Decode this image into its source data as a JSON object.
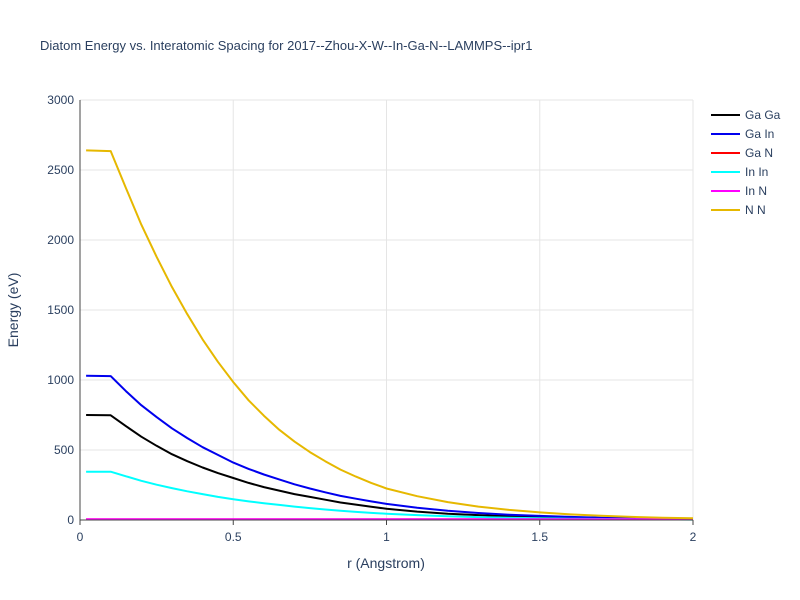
{
  "chart_data": {
    "type": "line",
    "title": "Diatom Energy vs. Interatomic Spacing for 2017--Zhou-X-W--In-Ga-N--LAMMPS--ipr1",
    "xlabel": "r (Angstrom)",
    "ylabel": "Energy (eV)",
    "xlim": [
      0,
      2
    ],
    "ylim": [
      0,
      3000
    ],
    "xticks": [
      0,
      0.5,
      1,
      1.5,
      2
    ],
    "xtick_labels": [
      "0",
      "0.5",
      "1",
      "1.5",
      "2"
    ],
    "yticks": [
      0,
      500,
      1000,
      1500,
      2000,
      2500,
      3000
    ],
    "ytick_labels": [
      "0",
      "500",
      "1000",
      "1500",
      "2000",
      "2500",
      "3000"
    ],
    "grid": true,
    "legend_position": "top-right",
    "x": [
      0.02,
      0.1,
      0.15,
      0.2,
      0.25,
      0.3,
      0.35,
      0.4,
      0.45,
      0.5,
      0.55,
      0.6,
      0.65,
      0.7,
      0.75,
      0.8,
      0.85,
      0.9,
      0.95,
      1.0,
      1.1,
      1.2,
      1.3,
      1.4,
      1.5,
      1.6,
      1.7,
      1.8,
      1.9,
      2.0
    ],
    "series": [
      {
        "name": "Ga Ga",
        "color": "#000000",
        "values": [
          750,
          748,
          670,
          595,
          530,
          470,
          420,
          375,
          335,
          300,
          265,
          235,
          210,
          185,
          165,
          145,
          125,
          110,
          95,
          80,
          60,
          45,
          35,
          27,
          20,
          15,
          11,
          8,
          6,
          4
        ]
      },
      {
        "name": "Ga In",
        "color": "#0000ee",
        "values": [
          1030,
          1028,
          920,
          820,
          735,
          655,
          585,
          520,
          465,
          410,
          365,
          325,
          290,
          255,
          225,
          198,
          172,
          152,
          133,
          115,
          88,
          66,
          50,
          38,
          29,
          22,
          16,
          12,
          9,
          6
        ]
      },
      {
        "name": "Ga N",
        "color": "#ff0000",
        "values": [
          4,
          4,
          4,
          4,
          4,
          4,
          4,
          4,
          4,
          4,
          4,
          4,
          4,
          4,
          4,
          4,
          4,
          4,
          4,
          4,
          4,
          4,
          4,
          4,
          4,
          4,
          4,
          4,
          4,
          4
        ]
      },
      {
        "name": "In In",
        "color": "#00ffff",
        "values": [
          345,
          345,
          312,
          280,
          252,
          228,
          205,
          185,
          165,
          148,
          133,
          120,
          108,
          96,
          85,
          75,
          66,
          58,
          51,
          45,
          35,
          27,
          21,
          16,
          12,
          9,
          7,
          5,
          4,
          3
        ]
      },
      {
        "name": "In N",
        "color": "#ff00ff",
        "values": [
          6,
          6,
          6,
          6,
          6,
          6,
          6,
          6,
          6,
          6,
          6,
          6,
          6,
          6,
          6,
          6,
          6,
          6,
          6,
          6,
          6,
          6,
          6,
          6,
          6,
          6,
          6,
          6,
          6,
          6
        ]
      },
      {
        "name": "N N",
        "color": "#e6b800",
        "values": [
          2640,
          2635,
          2370,
          2110,
          1880,
          1665,
          1470,
          1290,
          1130,
          985,
          855,
          745,
          645,
          560,
          485,
          420,
          360,
          310,
          265,
          225,
          170,
          128,
          96,
          72,
          54,
          40,
          30,
          22,
          16,
          12
        ]
      }
    ]
  }
}
